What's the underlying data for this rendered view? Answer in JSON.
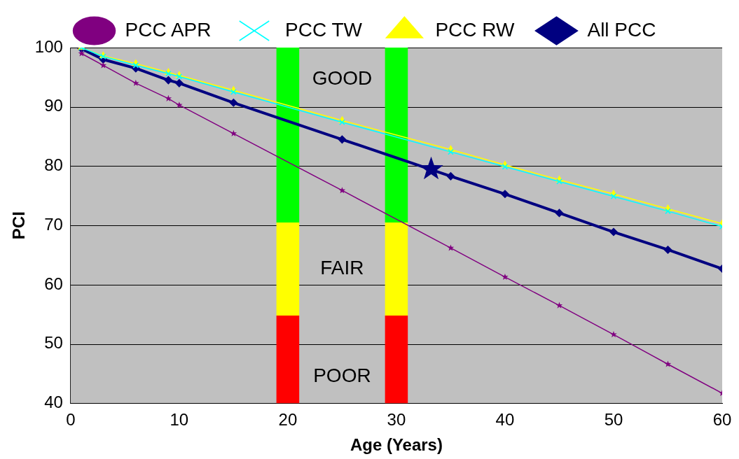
{
  "chart_data": {
    "type": "line",
    "xlabel": "Age (Years)",
    "ylabel": "PCI",
    "xlim": [
      0,
      60
    ],
    "xticks": [
      0,
      10,
      20,
      30,
      40,
      50,
      60
    ],
    "ylim": [
      40,
      100
    ],
    "yticks": [
      40,
      50,
      60,
      70,
      80,
      90,
      100
    ],
    "grid": "y",
    "legend": "top",
    "annotations": [
      "GOOD",
      "FAIR",
      "POOR"
    ],
    "series": [
      {
        "type": "bar",
        "color": "#ff0000",
        "x": [
          20,
          30
        ],
        "base": [
          40,
          40
        ],
        "values": [
          14.8,
          14.8
        ]
      },
      {
        "type": "bar",
        "color": "#ffff00",
        "x": [
          20,
          30
        ],
        "base": [
          54.8,
          54.8
        ],
        "values": [
          15.7,
          15.7
        ]
      },
      {
        "type": "bar",
        "color": "#00ff00",
        "x": [
          20,
          30
        ],
        "base": [
          70.5,
          70.5
        ],
        "values": [
          29.5,
          29.5
        ]
      },
      {
        "name": "All PCC",
        "color": "#000080",
        "marker": "diamond",
        "x": [
          1,
          3,
          6,
          9,
          10,
          15,
          25,
          35,
          40,
          45,
          50,
          55,
          60
        ],
        "values": [
          99.8,
          98,
          96.5,
          94.5,
          94,
          90.7,
          84.5,
          78.3,
          75.3,
          72.1,
          68.9,
          65.9,
          62.7
        ]
      },
      {
        "name": "PCC RW",
        "color": "#ffff00",
        "marker": "triangle",
        "x": [
          1,
          3,
          6,
          9,
          10,
          15,
          25,
          35,
          40,
          45,
          50,
          55,
          60
        ],
        "values": [
          100,
          98.6,
          97.3,
          95.8,
          95.3,
          92.8,
          87.7,
          82.8,
          80.2,
          77.7,
          75.3,
          72.8,
          70.3
        ]
      },
      {
        "name": "PCC TW",
        "color": "#00ffff",
        "marker": "cross",
        "x": [
          1,
          3,
          6,
          9,
          10,
          15,
          25,
          35,
          40,
          45,
          50,
          55,
          60
        ],
        "values": [
          100,
          98.5,
          97,
          95.6,
          95.1,
          92.5,
          87.4,
          82.4,
          79.9,
          77.4,
          74.9,
          72.4,
          69.8
        ]
      },
      {
        "name": "PCC APR",
        "color": "#800080",
        "marker": "star",
        "x": [
          1,
          3,
          6,
          9,
          10,
          15,
          25,
          35,
          40,
          45,
          50,
          55,
          60
        ],
        "values": [
          99,
          97,
          94,
          91.4,
          90.3,
          85.5,
          75.9,
          66.2,
          61.3,
          56.5,
          51.6,
          46.6,
          41.7
        ]
      },
      {
        "type": "scatter",
        "color": "#000080",
        "marker": "star",
        "x": [
          33.2
        ],
        "values": [
          79.5
        ]
      }
    ]
  }
}
